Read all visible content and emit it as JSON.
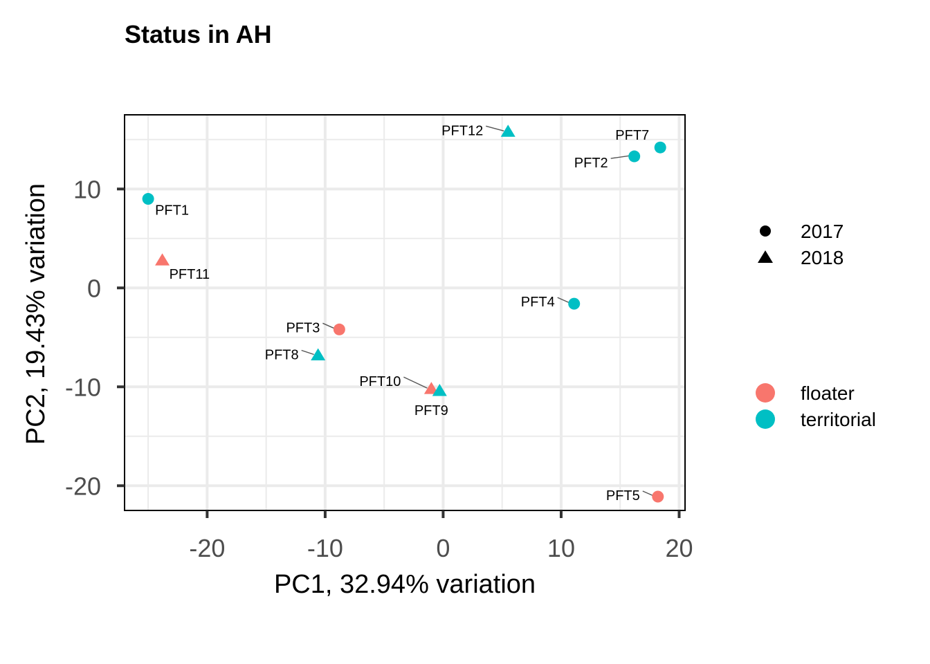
{
  "chart_data": {
    "type": "scatter",
    "title": "Status in AH",
    "xlabel": "PC1, 32.94% variation",
    "ylabel": "PC2, 19.43% variation",
    "xlim": [
      -27,
      20.5
    ],
    "ylim": [
      -22.5,
      17.5
    ],
    "xticks": [
      -20,
      -10,
      0,
      10,
      20
    ],
    "xtick_labels": [
      "-20",
      "-10",
      "0",
      "10",
      "20"
    ],
    "yticks": [
      -20,
      -10,
      0,
      10
    ],
    "ytick_labels": [
      "-20",
      "-10",
      "0",
      "10"
    ],
    "grid": true,
    "colors": {
      "floater": "#F8766D",
      "territorial": "#00BFC4"
    },
    "legend_shape": {
      "placement": "right",
      "entries": [
        {
          "label": "2017",
          "shape": "circle"
        },
        {
          "label": "2018",
          "shape": "triangle"
        }
      ]
    },
    "legend_color": {
      "placement": "right",
      "entries": [
        {
          "label": "floater",
          "color": "#F8766D"
        },
        {
          "label": "territorial",
          "color": "#00BFC4"
        }
      ]
    },
    "points": [
      {
        "label": "PFT1",
        "x": -25.0,
        "y": 9.0,
        "group": "territorial",
        "year": "2017"
      },
      {
        "label": "PFT11",
        "x": -23.8,
        "y": 2.8,
        "group": "floater",
        "year": "2018"
      },
      {
        "label": "PFT3",
        "x": -8.8,
        "y": -4.2,
        "group": "floater",
        "year": "2017"
      },
      {
        "label": "PFT8",
        "x": -10.6,
        "y": -6.8,
        "group": "territorial",
        "year": "2018"
      },
      {
        "label": "PFT10",
        "x": -1.0,
        "y": -10.2,
        "group": "floater",
        "year": "2018"
      },
      {
        "label": "PFT9",
        "x": -0.3,
        "y": -10.4,
        "group": "territorial",
        "year": "2018"
      },
      {
        "label": "PFT12",
        "x": 5.5,
        "y": 15.8,
        "group": "territorial",
        "year": "2018"
      },
      {
        "label": "PFT2",
        "x": 16.2,
        "y": 13.3,
        "group": "territorial",
        "year": "2017"
      },
      {
        "label": "PFT7",
        "x": 18.4,
        "y": 14.2,
        "group": "territorial",
        "year": "2017"
      },
      {
        "label": "PFT4",
        "x": 11.1,
        "y": -1.6,
        "group": "territorial",
        "year": "2017"
      },
      {
        "label": "PFT5",
        "x": 18.2,
        "y": -21.1,
        "group": "floater",
        "year": "2017"
      }
    ]
  }
}
